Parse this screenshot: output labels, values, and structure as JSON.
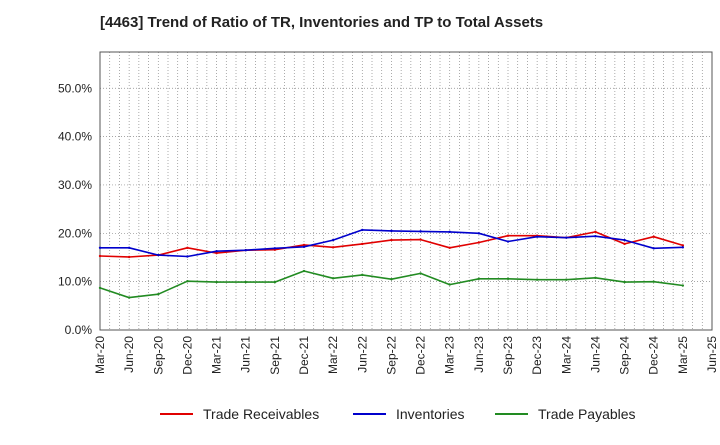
{
  "chart_data": {
    "type": "line",
    "title": "[4463]  Trend of Ratio of TR, Inventories and TP to Total Assets",
    "xlabel": "",
    "ylabel": "",
    "ylim": [
      0,
      0.575
    ],
    "yticks": [
      0,
      0.1,
      0.2,
      0.3,
      0.4,
      0.5
    ],
    "ytick_labels": [
      "0.0%",
      "10.0%",
      "20.0%",
      "30.0%",
      "40.0%",
      "50.0%"
    ],
    "x_categories": [
      "Mar-20",
      "Jun-20",
      "Sep-20",
      "Dec-20",
      "Mar-21",
      "Jun-21",
      "Sep-21",
      "Dec-21",
      "Mar-22",
      "Jun-22",
      "Sep-22",
      "Dec-22",
      "Mar-23",
      "Jun-23",
      "Sep-23",
      "Dec-23",
      "Mar-24",
      "Jun-24",
      "Sep-24",
      "Dec-24",
      "Mar-25",
      "Jun-25"
    ],
    "x_tick_labels": [
      "Mar-20",
      "Jun-20",
      "Sep-20",
      "Dec-20",
      "Mar-21",
      "Jun-21",
      "Sep-21",
      "Dec-21",
      "Mar-22",
      "Jun-22",
      "Sep-22",
      "Dec-22",
      "Mar-23",
      "Jun-23",
      "Sep-23",
      "Dec-23",
      "Mar-24",
      "Jun-24",
      "Sep-24",
      "Dec-24",
      "Mar-25",
      "Jun-25"
    ],
    "grid": true,
    "legend_position": "bottom",
    "series": [
      {
        "name": "Trade Receivables",
        "color": "#e00000",
        "values": [
          0.153,
          0.151,
          0.155,
          0.17,
          0.159,
          0.165,
          0.166,
          0.176,
          0.171,
          0.178,
          0.186,
          0.187,
          0.17,
          0.181,
          0.195,
          0.195,
          0.191,
          0.203,
          0.178,
          0.193,
          0.175
        ]
      },
      {
        "name": "Inventories",
        "color": "#0000cc",
        "values": [
          0.17,
          0.17,
          0.155,
          0.152,
          0.163,
          0.165,
          0.169,
          0.172,
          0.186,
          0.207,
          0.205,
          0.204,
          0.203,
          0.2,
          0.183,
          0.193,
          0.191,
          0.194,
          0.186,
          0.169,
          0.171
        ]
      },
      {
        "name": "Trade Payables",
        "color": "#228b22",
        "values": [
          0.087,
          0.067,
          0.074,
          0.101,
          0.099,
          0.099,
          0.099,
          0.122,
          0.107,
          0.114,
          0.105,
          0.117,
          0.094,
          0.106,
          0.106,
          0.104,
          0.104,
          0.108,
          0.099,
          0.1,
          0.092
        ]
      }
    ]
  }
}
